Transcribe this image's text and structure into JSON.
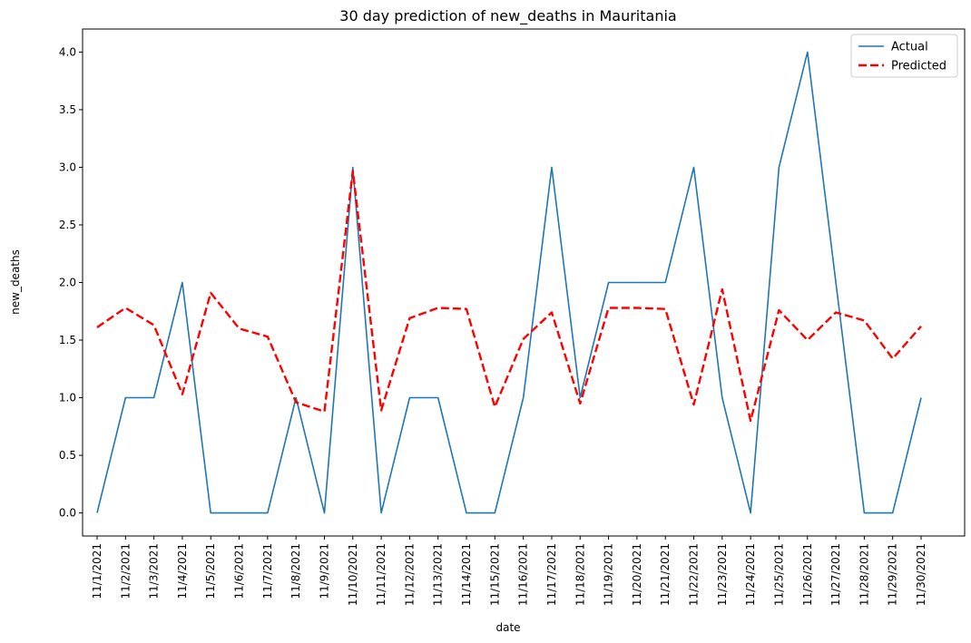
{
  "chart_data": {
    "type": "line",
    "title": "30 day prediction of new_deaths in Mauritania",
    "xlabel": "date",
    "ylabel": "new_deaths",
    "ylim": [
      -0.2,
      4.2
    ],
    "yticks": [
      "0.0",
      "0.5",
      "1.0",
      "1.5",
      "2.0",
      "2.5",
      "3.0",
      "3.5",
      "4.0"
    ],
    "grid": false,
    "legend_position": "top-right",
    "categories": [
      "11/1/2021",
      "11/2/2021",
      "11/3/2021",
      "11/4/2021",
      "11/5/2021",
      "11/6/2021",
      "11/7/2021",
      "11/8/2021",
      "11/9/2021",
      "11/10/2021",
      "11/11/2021",
      "11/12/2021",
      "11/13/2021",
      "11/14/2021",
      "11/15/2021",
      "11/16/2021",
      "11/17/2021",
      "11/18/2021",
      "11/19/2021",
      "11/20/2021",
      "11/21/2021",
      "11/22/2021",
      "11/23/2021",
      "11/24/2021",
      "11/25/2021",
      "11/26/2021",
      "11/27/2021",
      "11/28/2021",
      "11/29/2021",
      "11/30/2021"
    ],
    "series": [
      {
        "name": "Actual",
        "color": "#1f77b4",
        "style": "solid",
        "values": [
          0,
          1,
          1,
          2,
          0,
          0,
          0,
          1,
          0,
          3,
          0,
          1,
          1,
          0,
          0,
          1,
          3,
          1,
          2,
          2,
          2,
          3,
          1,
          0,
          3,
          4,
          2,
          0,
          0,
          1
        ]
      },
      {
        "name": "Predicted",
        "color": "#ff0000",
        "style": "dashed",
        "values": [
          1.61,
          1.78,
          1.63,
          1.03,
          1.91,
          1.6,
          1.53,
          0.96,
          0.88,
          2.97,
          0.89,
          1.69,
          1.78,
          1.77,
          0.92,
          1.51,
          1.74,
          0.95,
          1.78,
          1.78,
          1.77,
          0.94,
          1.94,
          0.8,
          1.76,
          1.5,
          1.74,
          1.67,
          1.34,
          1.62
        ]
      }
    ]
  }
}
